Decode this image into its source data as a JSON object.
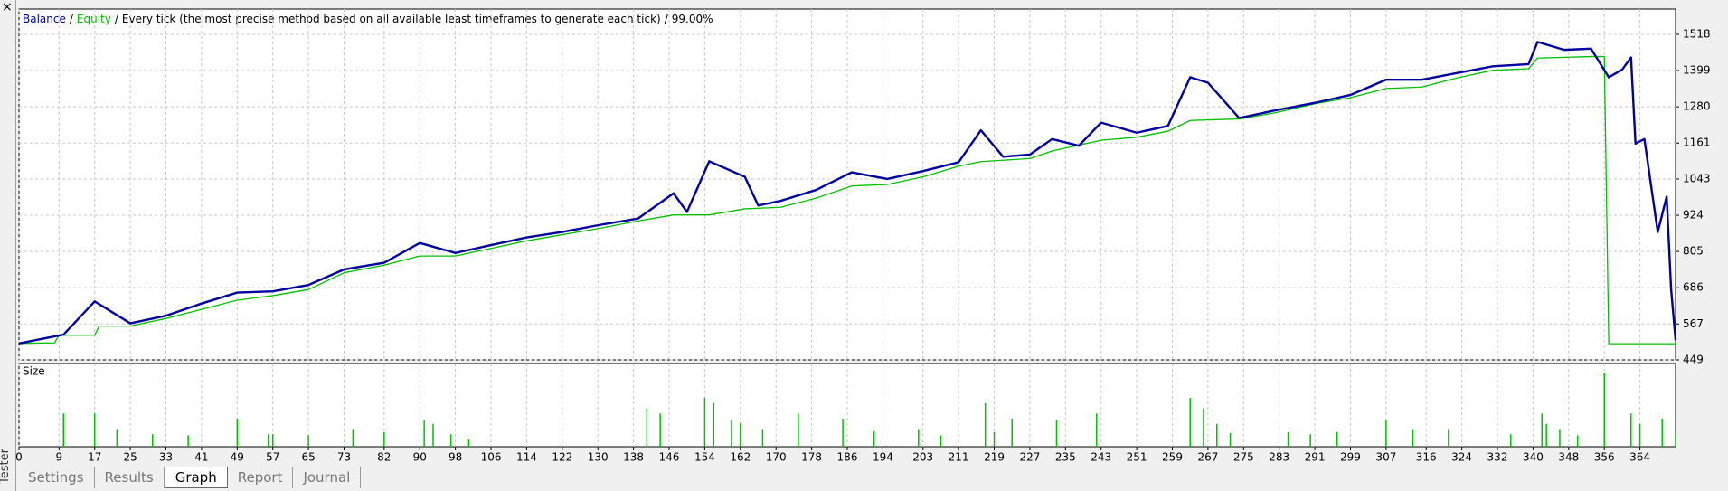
{
  "window": {
    "side_label": "Tester",
    "tabs": [
      "Settings",
      "Results",
      "Graph",
      "Report",
      "Journal"
    ],
    "active_tab": 2
  },
  "chart_data": {
    "type": "line",
    "separator": "/",
    "mode": "Every tick (the most precise method based on all available least timeframes to generate each tick)",
    "quality": "99.00%",
    "xlim": [
      0,
      372
    ],
    "xticks": [
      0,
      9,
      17,
      25,
      33,
      41,
      49,
      57,
      65,
      73,
      82,
      90,
      98,
      106,
      114,
      122,
      130,
      138,
      146,
      154,
      162,
      170,
      178,
      186,
      194,
      203,
      211,
      219,
      227,
      235,
      243,
      251,
      259,
      267,
      275,
      283,
      291,
      299,
      307,
      316,
      324,
      332,
      340,
      348,
      356,
      364
    ],
    "ylim": [
      449,
      1601
    ],
    "yticks": [
      449,
      567,
      686,
      805,
      924,
      1043,
      1161,
      1280,
      1399,
      1518
    ],
    "grid": true,
    "series": [
      {
        "name": "Balance",
        "color": "#0000a0",
        "x": [
          0,
          10,
          17,
          25,
          33,
          41,
          49,
          57,
          65,
          73,
          82,
          90,
          98,
          106,
          114,
          122,
          130,
          139,
          147,
          150,
          155,
          163,
          166,
          171,
          179,
          187,
          195,
          203,
          211,
          216,
          221,
          227,
          232,
          238,
          243,
          251,
          258,
          263,
          267,
          274,
          282,
          291,
          299,
          307,
          315,
          323,
          331,
          339,
          341,
          347,
          353,
          357,
          360,
          362,
          363,
          365,
          368,
          370,
          371,
          372
        ],
        "values": [
          503,
          532,
          641,
          569,
          594,
          634,
          670,
          674,
          695,
          746,
          768,
          833,
          800,
          826,
          851,
          869,
          891,
          913,
          996,
          935,
          1101,
          1050,
          956,
          971,
          1007,
          1065,
          1043,
          1069,
          1098,
          1203,
          1116,
          1123,
          1174,
          1152,
          1228,
          1195,
          1217,
          1377,
          1359,
          1243,
          1268,
          1293,
          1319,
          1369,
          1369,
          1391,
          1413,
          1420,
          1493,
          1467,
          1471,
          1377,
          1402,
          1442,
          1159,
          1174,
          869,
          985,
          681,
          514
        ]
      },
      {
        "name": "Equity",
        "color": "#00c000",
        "x": [
          0,
          8,
          9,
          17,
          18,
          25,
          33,
          41,
          49,
          57,
          65,
          73,
          82,
          90,
          98,
          106,
          114,
          122,
          130,
          139,
          147,
          155,
          163,
          171,
          179,
          187,
          195,
          203,
          211,
          216,
          227,
          232,
          243,
          251,
          258,
          263,
          274,
          282,
          291,
          299,
          307,
          315,
          323,
          331,
          339,
          341,
          353,
          356,
          357,
          372
        ],
        "values": [
          503,
          505,
          530,
          530,
          560,
          560,
          585,
          615,
          645,
          660,
          680,
          735,
          760,
          790,
          790,
          815,
          840,
          860,
          880,
          905,
          925,
          925,
          945,
          950,
          980,
          1020,
          1025,
          1050,
          1085,
          1100,
          1110,
          1135,
          1170,
          1180,
          1200,
          1235,
          1240,
          1260,
          1290,
          1310,
          1340,
          1345,
          1375,
          1400,
          1405,
          1440,
          1445,
          1445,
          502,
          502
        ]
      }
    ],
    "size_panel": {
      "type": "bar",
      "title": "Size",
      "color": "#00c000",
      "x": [
        10,
        17,
        22,
        30,
        38,
        49,
        56,
        57,
        65,
        75,
        82,
        91,
        93,
        97,
        101,
        141,
        144,
        154,
        156,
        160,
        162,
        167,
        175,
        185,
        192,
        202,
        207,
        217,
        219,
        223,
        233,
        242,
        263,
        266,
        269,
        272,
        285,
        290,
        296,
        307,
        313,
        321,
        335,
        342,
        343,
        346,
        350,
        356,
        362,
        364,
        369,
        372
      ],
      "values": [
        3.2,
        3.2,
        1.7,
        1.2,
        1.1,
        2.7,
        1.2,
        1.2,
        1.1,
        1.7,
        1.4,
        2.6,
        2.2,
        1.2,
        0.7,
        3.7,
        3.2,
        4.7,
        4.2,
        2.6,
        2.3,
        1.7,
        3.2,
        2.7,
        1.5,
        1.7,
        1.1,
        4.2,
        1.4,
        2.7,
        2.6,
        3.2,
        4.7,
        3.7,
        2.2,
        1.3,
        1.4,
        1.2,
        1.4,
        2.6,
        1.7,
        1.7,
        1.2,
        3.2,
        2.2,
        1.7,
        1.1,
        7.1,
        3.2,
        2.2,
        2.7,
        1.2
      ],
      "ylim": [
        0,
        7.5
      ]
    }
  }
}
